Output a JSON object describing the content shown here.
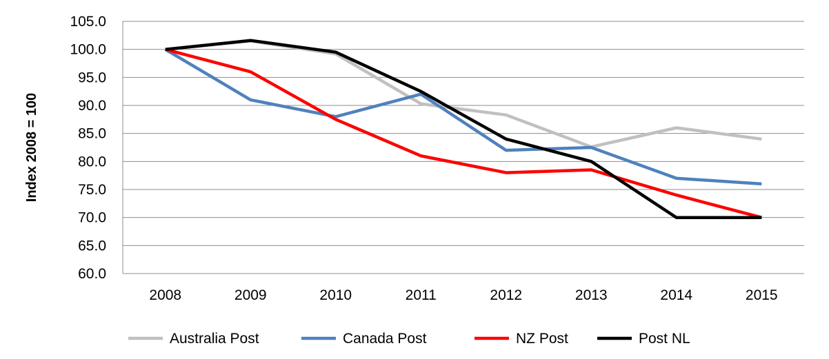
{
  "chart_data": {
    "type": "line",
    "title": "",
    "xlabel": "",
    "ylabel": "Index 2008 = 100",
    "categories": [
      "2008",
      "2009",
      "2010",
      "2011",
      "2012",
      "2013",
      "2014",
      "2015"
    ],
    "ylim": [
      60,
      105
    ],
    "yticks": [
      "60.0",
      "65.0",
      "70.0",
      "75.0",
      "80.0",
      "85.0",
      "90.0",
      "95.0",
      "100.0",
      "105.0"
    ],
    "grid": true,
    "legend_position": "bottom",
    "series": [
      {
        "name": "Australia Post",
        "color": "#c0c0c0",
        "values": [
          100,
          101.5,
          99.2,
          90.3,
          88.3,
          82.6,
          86.0,
          84.0
        ]
      },
      {
        "name": "Canada Post",
        "color": "#4f81bd",
        "values": [
          100,
          91.0,
          88.0,
          92.0,
          82.0,
          82.5,
          77.0,
          76.0
        ]
      },
      {
        "name": "NZ Post",
        "color": "#ff0000",
        "values": [
          100,
          96.0,
          87.5,
          81.0,
          78.0,
          78.5,
          74.0,
          70.0
        ]
      },
      {
        "name": "Post NL",
        "color": "#000000",
        "values": [
          100,
          101.6,
          99.5,
          92.5,
          84.0,
          80.0,
          70.0,
          70.0
        ]
      }
    ]
  }
}
